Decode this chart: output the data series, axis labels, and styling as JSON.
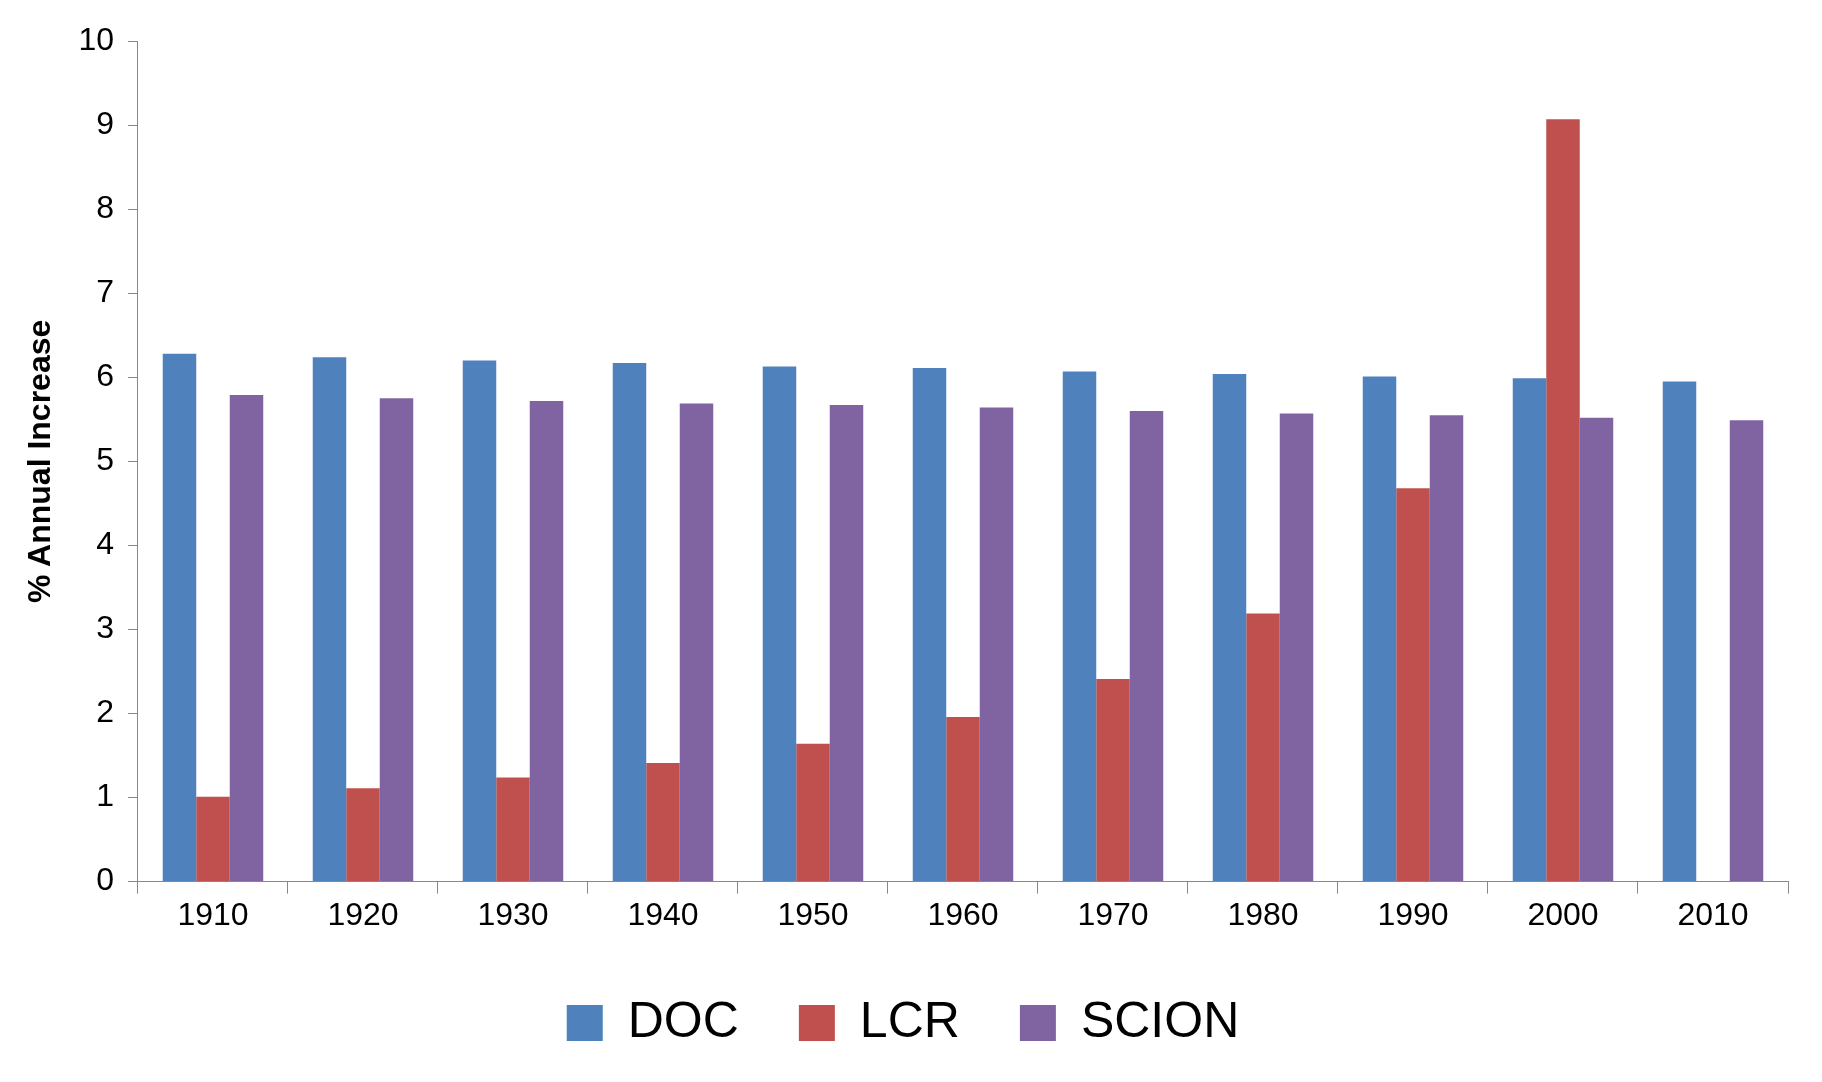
{
  "chart_data": {
    "type": "bar",
    "ylabel": "% Annual Increase",
    "categories": [
      "1910",
      "1920",
      "1930",
      "1940",
      "1950",
      "1960",
      "1970",
      "1980",
      "1990",
      "2000",
      "2010"
    ],
    "series": [
      {
        "name": "DOC",
        "color": "#4f81bd",
        "values": [
          6.28,
          6.24,
          6.2,
          6.17,
          6.13,
          6.11,
          6.07,
          6.04,
          6.01,
          5.99,
          5.95
        ]
      },
      {
        "name": "LCR",
        "color": "#c0504d",
        "values": [
          1.01,
          1.11,
          1.24,
          1.41,
          1.64,
          1.96,
          2.41,
          3.19,
          4.68,
          9.07,
          null
        ]
      },
      {
        "name": "SCION",
        "color": "#8064a2",
        "values": [
          5.79,
          5.75,
          5.72,
          5.69,
          5.67,
          5.64,
          5.6,
          5.57,
          5.55,
          5.52,
          5.49
        ]
      }
    ],
    "ylim": [
      0,
      10
    ],
    "yticks": [
      0,
      1,
      2,
      3,
      4,
      5,
      6,
      7,
      8,
      9,
      10
    ],
    "grid": false,
    "legend": "bottom"
  }
}
